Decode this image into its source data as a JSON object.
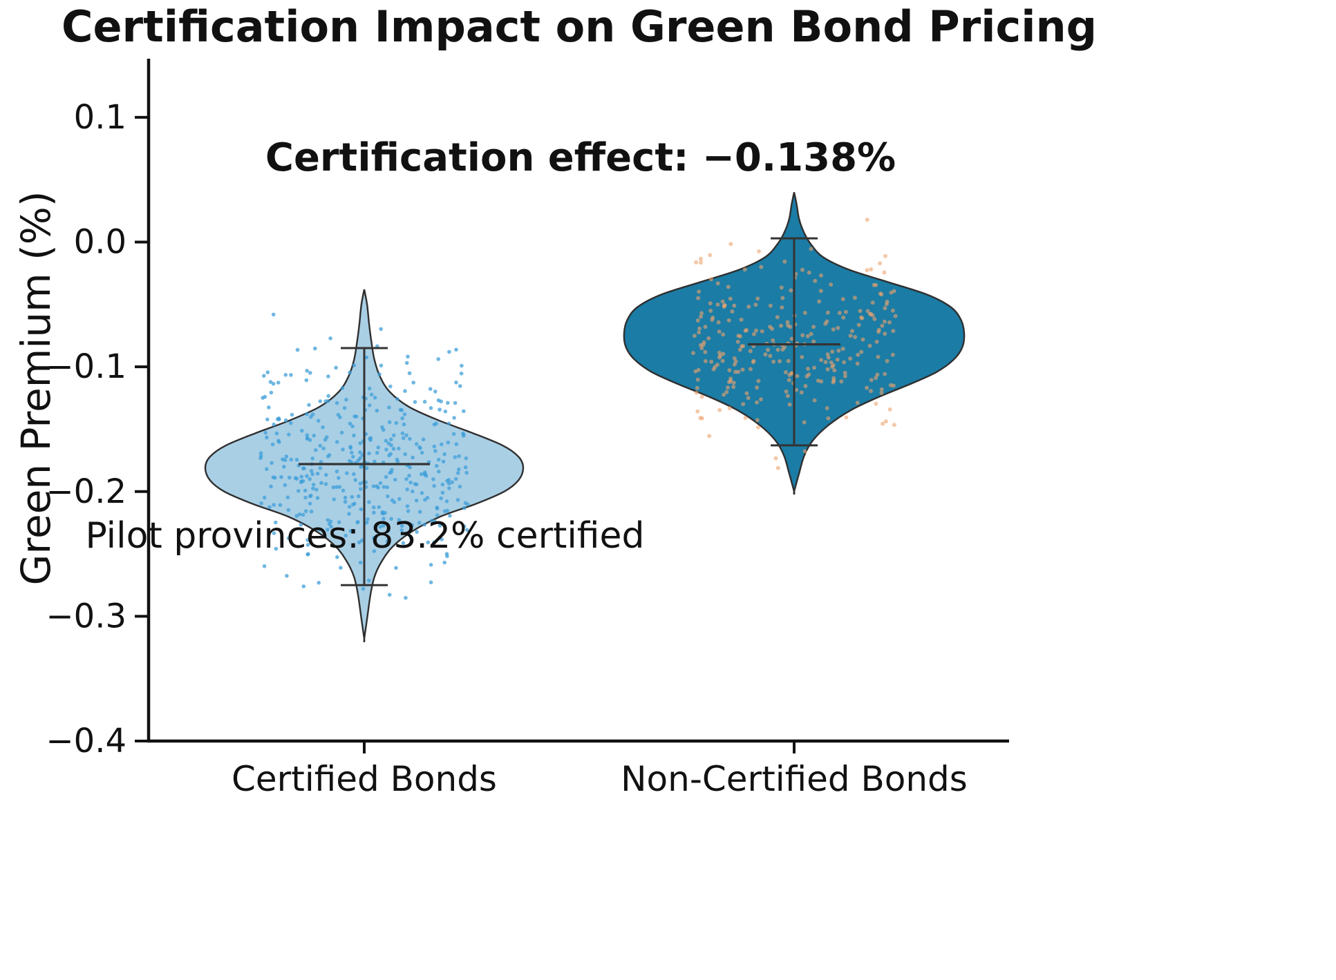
{
  "chart_data": {
    "type": "violin",
    "title": "Certification Impact on Green Bond Pricing",
    "ylabel": "Green Premium (%)",
    "xlabel": "",
    "ylim": [
      -0.4,
      0.147
    ],
    "yticks": [
      0.1,
      0.0,
      -0.1,
      -0.2,
      -0.3,
      -0.4
    ],
    "ytick_labels": [
      "0.1",
      "0.0",
      "−0.1",
      "−0.2",
      "−0.3",
      "−0.4"
    ],
    "categories": [
      "Certified Bonds",
      "Non-Certified Bonds"
    ],
    "grid": false,
    "legend": "none",
    "certification_effect_pct": -0.138,
    "pilot_certified_pct": 83.2,
    "annotations": [
      {
        "text": "Certification effect: −0.138%",
        "bold": true
      },
      {
        "text": "Pilot provinces: 83.2% certified",
        "bold": false
      }
    ],
    "series": [
      {
        "name": "Certified Bonds",
        "fill_color": "#a9cfe5",
        "edge_color": "#2f2f2f",
        "point_color": "#3f9fd8",
        "median": -0.178,
        "whisker_high": -0.085,
        "whisker_low": -0.275,
        "range": [
          -0.318,
          -0.038
        ],
        "density_profile": [
          [
            -0.038,
            0.0
          ],
          [
            -0.05,
            0.018
          ],
          [
            -0.065,
            0.03
          ],
          [
            -0.08,
            0.045
          ],
          [
            -0.095,
            0.065
          ],
          [
            -0.108,
            0.1
          ],
          [
            -0.12,
            0.16
          ],
          [
            -0.132,
            0.28
          ],
          [
            -0.143,
            0.47
          ],
          [
            -0.153,
            0.68
          ],
          [
            -0.163,
            0.87
          ],
          [
            -0.172,
            0.97
          ],
          [
            -0.181,
            1.0
          ],
          [
            -0.191,
            0.97
          ],
          [
            -0.2,
            0.88
          ],
          [
            -0.21,
            0.7
          ],
          [
            -0.22,
            0.48
          ],
          [
            -0.232,
            0.3
          ],
          [
            -0.244,
            0.18
          ],
          [
            -0.256,
            0.11
          ],
          [
            -0.268,
            0.065
          ],
          [
            -0.282,
            0.04
          ],
          [
            -0.3,
            0.02
          ],
          [
            -0.318,
            0.0
          ]
        ],
        "points": {
          "n": 420,
          "mean": -0.176,
          "sd": 0.045,
          "clip": [
            -0.295,
            -0.042
          ]
        }
      },
      {
        "name": "Non-Certified Bonds",
        "fill_color": "#1b7ca5",
        "edge_color": "#2f2f2f",
        "point_color": "#eda36e",
        "median": -0.082,
        "whisker_high": 0.003,
        "whisker_low": -0.163,
        "range": [
          -0.2,
          0.04
        ],
        "density_profile": [
          [
            0.04,
            0.0
          ],
          [
            0.03,
            0.015
          ],
          [
            0.018,
            0.03
          ],
          [
            0.007,
            0.06
          ],
          [
            -0.002,
            0.1
          ],
          [
            -0.012,
            0.17
          ],
          [
            -0.022,
            0.32
          ],
          [
            -0.032,
            0.55
          ],
          [
            -0.042,
            0.78
          ],
          [
            -0.052,
            0.92
          ],
          [
            -0.062,
            0.98
          ],
          [
            -0.073,
            1.0
          ],
          [
            -0.084,
            0.99
          ],
          [
            -0.094,
            0.94
          ],
          [
            -0.104,
            0.84
          ],
          [
            -0.114,
            0.68
          ],
          [
            -0.124,
            0.5
          ],
          [
            -0.135,
            0.33
          ],
          [
            -0.147,
            0.2
          ],
          [
            -0.159,
            0.11
          ],
          [
            -0.171,
            0.06
          ],
          [
            -0.185,
            0.03
          ],
          [
            -0.2,
            0.0
          ]
        ],
        "points": {
          "n": 280,
          "mean": -0.085,
          "sd": 0.038,
          "clip": [
            -0.188,
            0.018
          ]
        }
      }
    ]
  }
}
